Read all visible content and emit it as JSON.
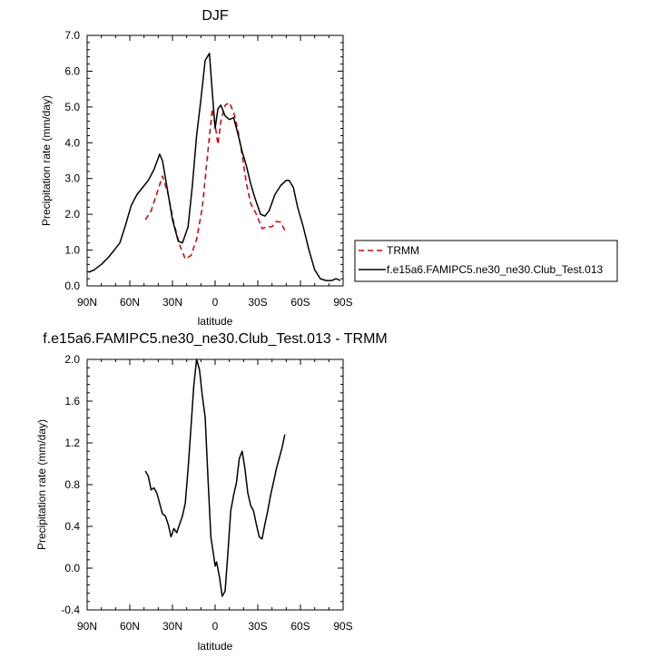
{
  "chart_data": [
    {
      "type": "line",
      "title": "DJF",
      "xlabel": "latitude",
      "ylabel": "Precipitation rate (mm/day)",
      "xlim": [
        90,
        -90
      ],
      "ylim": [
        0,
        7
      ],
      "xticks": [
        90,
        60,
        30,
        0,
        -30,
        -60,
        -90
      ],
      "xtick_labels": [
        "90N",
        "60N",
        "30N",
        "0",
        "30S",
        "60S",
        "90S"
      ],
      "yticks": [
        0,
        1,
        2,
        3,
        4,
        5,
        6,
        7
      ],
      "ytick_labels": [
        "0.0",
        "1.0",
        "2.0",
        "3.0",
        "4.0",
        "5.0",
        "6.0",
        "7.0"
      ],
      "legend_position": "right",
      "series": [
        {
          "name": "TRMM",
          "color": "#dd0000",
          "style": "dashed",
          "x": [
            49,
            45,
            40,
            37,
            33,
            29,
            25,
            21,
            17,
            13,
            9,
            5,
            2,
            0,
            -2,
            -4,
            -7,
            -10,
            -13,
            -16,
            -19,
            -22,
            -25,
            -29,
            -33,
            -36,
            -40,
            -43,
            -46,
            -49
          ],
          "y": [
            1.85,
            2.1,
            2.7,
            3.07,
            2.55,
            1.75,
            1.15,
            0.75,
            0.85,
            1.3,
            2.2,
            3.8,
            4.95,
            4.5,
            3.95,
            4.6,
            5.05,
            5.12,
            4.85,
            4.35,
            3.65,
            2.85,
            2.3,
            2.0,
            1.6,
            1.65,
            1.65,
            1.8,
            1.78,
            1.55
          ]
        },
        {
          "name": "f.e15a6.FAMIPC5.ne30_ne30.Club_Test.013",
          "color": "#000000",
          "style": "solid",
          "x": [
            89,
            85,
            80,
            75,
            71,
            67,
            63,
            59,
            55,
            51,
            47,
            43,
            39,
            37,
            34,
            30,
            26,
            23,
            19,
            16,
            13,
            10,
            7,
            4,
            2,
            0,
            -2,
            -4,
            -7,
            -10,
            -13,
            -16,
            -19,
            -22,
            -25,
            -28,
            -32,
            -35,
            -38,
            -42,
            -46,
            -50,
            -52,
            -55,
            -58,
            -62,
            -66,
            -70,
            -74,
            -78,
            -82,
            -85,
            -88
          ],
          "y": [
            0.38,
            0.45,
            0.6,
            0.8,
            1.0,
            1.2,
            1.7,
            2.25,
            2.55,
            2.75,
            2.95,
            3.25,
            3.68,
            3.5,
            2.8,
            1.85,
            1.25,
            1.2,
            1.65,
            2.8,
            4.2,
            5.2,
            6.3,
            6.5,
            5.4,
            4.4,
            4.95,
            5.05,
            4.75,
            4.65,
            4.7,
            4.25,
            3.75,
            3.35,
            2.85,
            2.45,
            2.0,
            1.95,
            2.1,
            2.55,
            2.8,
            2.95,
            2.95,
            2.75,
            2.2,
            1.65,
            1.0,
            0.45,
            0.2,
            0.15,
            0.15,
            0.2,
            0.15
          ]
        }
      ]
    },
    {
      "type": "line",
      "title": "f.e15a6.FAMIPC5.ne30_ne30.Club_Test.013 - TRMM",
      "xlabel": "latitude",
      "ylabel": "Precipitation rate (mm/day)",
      "xlim": [
        90,
        -90
      ],
      "ylim": [
        -0.4,
        2.0
      ],
      "xticks": [
        90,
        60,
        30,
        0,
        -30,
        -60,
        -90
      ],
      "xtick_labels": [
        "90N",
        "60N",
        "30N",
        "0",
        "30S",
        "60S",
        "90S"
      ],
      "yticks": [
        -0.4,
        0.0,
        0.4,
        0.8,
        1.2,
        1.6,
        2.0
      ],
      "ytick_labels": [
        "-0.4",
        "0.0",
        "0.4",
        "0.8",
        "1.2",
        "1.6",
        "2.0"
      ],
      "series": [
        {
          "color": "#000000",
          "style": "solid",
          "x": [
            49,
            47,
            45,
            43,
            41,
            39,
            37,
            35,
            33,
            31,
            29,
            27,
            25,
            23,
            21,
            19,
            17,
            15,
            13,
            11,
            9,
            7,
            5,
            3,
            1,
            0,
            -1,
            -3,
            -5,
            -7,
            -9,
            -11,
            -13,
            -15,
            -17,
            -19,
            -21,
            -23,
            -25,
            -27,
            -29,
            -31,
            -33,
            -35,
            -37,
            -39,
            -41,
            -43,
            -45,
            -47,
            -49
          ],
          "y": [
            0.93,
            0.88,
            0.75,
            0.77,
            0.72,
            0.62,
            0.52,
            0.5,
            0.42,
            0.3,
            0.38,
            0.34,
            0.42,
            0.5,
            0.62,
            0.95,
            1.35,
            1.75,
            2.0,
            1.9,
            1.65,
            1.45,
            0.85,
            0.3,
            0.12,
            0.02,
            0.06,
            -0.08,
            -0.27,
            -0.22,
            0.15,
            0.55,
            0.7,
            0.82,
            1.05,
            1.12,
            0.95,
            0.72,
            0.6,
            0.55,
            0.42,
            0.3,
            0.28,
            0.42,
            0.55,
            0.7,
            0.82,
            0.95,
            1.05,
            1.15,
            1.28
          ]
        }
      ]
    }
  ]
}
